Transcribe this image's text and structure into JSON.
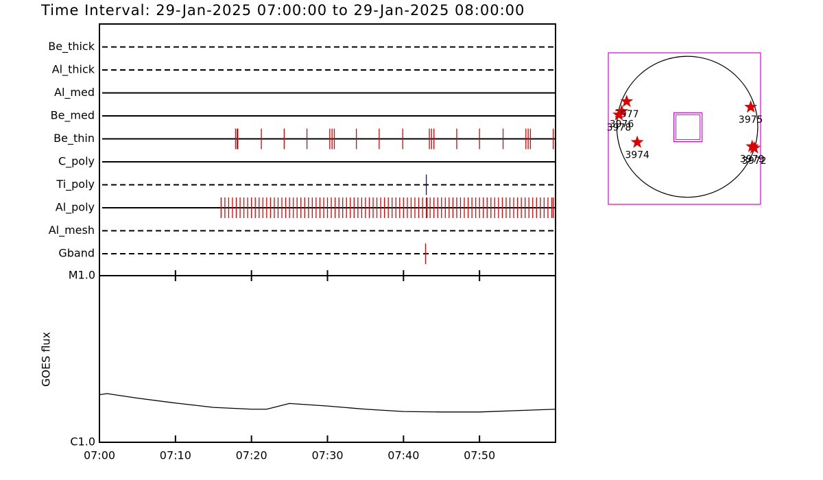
{
  "chart_data": [
    {
      "type": "event",
      "title": "Time Interval: 29-Jan-2025 07:00:00 to 29-Jan-2025 08:00:00",
      "xlim": [
        0,
        60
      ],
      "rows": [
        {
          "label": "Be_thick",
          "dashed": true,
          "events": []
        },
        {
          "label": "Al_thick",
          "dashed": true,
          "events": []
        },
        {
          "label": "Al_med",
          "dashed": false,
          "events": []
        },
        {
          "label": "Be_med",
          "dashed": false,
          "events": []
        },
        {
          "label": "Be_thin",
          "dashed": false,
          "color": "#e00000",
          "events": [
            17.9,
            18.1,
            18.2,
            21.3,
            24.3,
            27.3,
            30.3,
            30.6,
            30.9,
            33.8,
            36.8,
            39.9,
            43.4,
            43.7,
            44.0,
            47.0,
            50.0,
            53.1,
            56.1,
            56.4,
            56.7,
            59.7
          ]
        },
        {
          "label": "C_poly",
          "dashed": false,
          "events": []
        },
        {
          "label": "Ti_poly",
          "dashed": true,
          "color": "#0000e0",
          "events": [
            43.0
          ]
        },
        {
          "label": "Al_poly",
          "dashed": false,
          "color": "#e00000",
          "events": [
            16,
            16.5,
            17,
            17.5,
            18,
            18.5,
            19,
            19.5,
            20,
            20.5,
            21,
            21.5,
            22,
            22.5,
            23,
            23.5,
            24,
            24.5,
            25,
            25.5,
            26,
            26.5,
            27,
            27.5,
            28,
            28.5,
            29,
            29.5,
            30,
            30.5,
            31,
            31.5,
            32,
            32.5,
            33,
            33.5,
            34,
            34.5,
            35,
            35.5,
            36,
            36.5,
            37,
            37.5,
            38,
            38.5,
            39,
            39.5,
            40,
            40.5,
            41,
            41.5,
            42,
            42.5,
            43,
            43.1,
            43.5,
            44,
            44.5,
            45,
            45.5,
            46,
            46.5,
            47,
            47.5,
            48,
            48.5,
            49,
            49.5,
            50,
            50.5,
            51,
            51.5,
            52,
            52.5,
            53,
            53.5,
            54,
            54.5,
            55,
            55.5,
            56,
            56.5,
            57,
            57.5,
            58,
            58.5,
            59,
            59.5,
            59.7
          ]
        },
        {
          "label": "Al_mesh",
          "dashed": true,
          "events": []
        },
        {
          "label": "Gband",
          "dashed": true,
          "color": "#e00000",
          "events": [
            42.9
          ]
        }
      ]
    },
    {
      "type": "line",
      "ylabel": "GOES flux",
      "log": true,
      "color": "#000000",
      "x": [
        0,
        1,
        5,
        10,
        15,
        20,
        22,
        25,
        30,
        35,
        40,
        45,
        50,
        55,
        60
      ],
      "values": [
        1.93e-06,
        1.96e-06,
        1.84e-06,
        1.72e-06,
        1.62e-06,
        1.58e-06,
        1.58e-06,
        1.71e-06,
        1.65e-06,
        1.58e-06,
        1.53e-06,
        1.52e-06,
        1.52e-06,
        1.55e-06,
        1.58e-06
      ],
      "xlim": [
        0,
        60
      ],
      "xticks": [
        {
          "value": 0,
          "label": "07:00"
        },
        {
          "value": 10,
          "label": "07:10"
        },
        {
          "value": 20,
          "label": "07:20"
        },
        {
          "value": 30,
          "label": "07:30"
        },
        {
          "value": 40,
          "label": "07:40"
        },
        {
          "value": 50,
          "label": "07:50"
        }
      ],
      "ylim": [
        1e-06,
        1e-05
      ],
      "yticks": [
        {
          "value": 1e-06,
          "label": "C1.0"
        },
        {
          "value": 1e-05,
          "label": "M1.0"
        }
      ]
    },
    {
      "type": "scatter",
      "color": "#e00000",
      "frame_color": "#e000e0",
      "xlim": [
        -1.12,
        1.04
      ],
      "ylim": [
        -1.1,
        1.05
      ],
      "fov": [
        -0.19,
        0.21,
        -0.21,
        0.2
      ],
      "points": [
        {
          "label": "3974",
          "x": -0.71,
          "y": -0.22
        },
        {
          "label": "3975",
          "x": 0.9,
          "y": 0.28
        },
        {
          "label": "3976",
          "x": -0.93,
          "y": 0.22
        },
        {
          "label": "3977",
          "x": -0.86,
          "y": 0.36
        },
        {
          "label": "3978",
          "x": -0.97,
          "y": 0.17
        },
        {
          "label": "3979",
          "x": 0.92,
          "y": -0.28
        },
        {
          "label": "3972",
          "x": 0.95,
          "y": -0.3
        }
      ]
    }
  ]
}
